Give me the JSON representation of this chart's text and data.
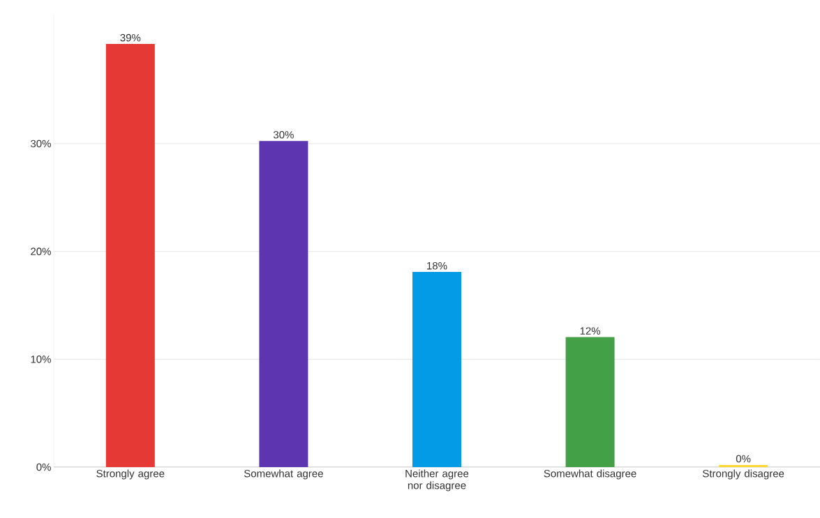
{
  "chart_data": {
    "type": "bar",
    "categories": [
      "Strongly agree",
      "Somewhat agree",
      "Neither agree nor disagree",
      "Somewhat disagree",
      "Strongly disagree"
    ],
    "values": [
      39.25,
      30.25,
      18.1,
      12.06,
      0.2
    ],
    "value_labels": [
      "39%",
      "30%",
      "18%",
      "12%",
      "0%"
    ],
    "colors": [
      "#e53935",
      "#5e35b1",
      "#039be5",
      "#43a047",
      "#fdd835"
    ],
    "ylim": [
      0,
      41.9
    ],
    "yticks": [
      {
        "value": 0,
        "label": "0%"
      },
      {
        "value": 10,
        "label": "10%"
      },
      {
        "value": 20,
        "label": "20%"
      },
      {
        "value": 30,
        "label": "30%"
      }
    ],
    "grid": "y"
  }
}
